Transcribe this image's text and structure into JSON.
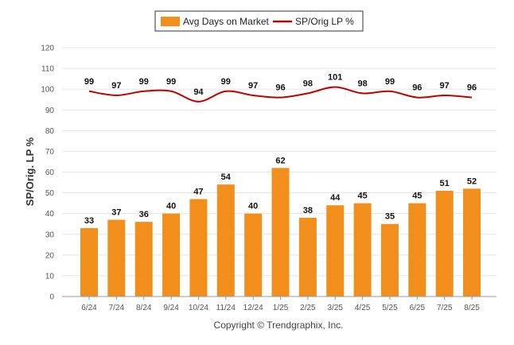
{
  "chart_data": {
    "type": "bar",
    "title": "",
    "ylabel": "SP/Orig. LP %",
    "xlabel": "",
    "ylim": [
      0,
      120
    ],
    "yticks": [
      0,
      10,
      20,
      30,
      40,
      50,
      60,
      70,
      80,
      90,
      100,
      110,
      120
    ],
    "grid": true,
    "legend_position": "top-center",
    "categories": [
      "6/24",
      "7/24",
      "8/24",
      "9/24",
      "10/24",
      "11/24",
      "12/24",
      "1/25",
      "2/25",
      "3/25",
      "4/25",
      "5/25",
      "6/25",
      "7/25",
      "8/25"
    ],
    "series": [
      {
        "name": "Avg Days on Market",
        "type": "bar",
        "color": "#f28e1c",
        "values": [
          33,
          37,
          36,
          40,
          47,
          54,
          40,
          62,
          38,
          44,
          45,
          35,
          45,
          51,
          52
        ]
      },
      {
        "name": "SP/Orig LP %",
        "type": "line",
        "color": "#c00000",
        "values": [
          99,
          97,
          99,
          99,
          94,
          99,
          97,
          96,
          98,
          101,
          98,
          99,
          96,
          97,
          96
        ]
      }
    ]
  },
  "footer": {
    "credit": "Copyright © Trendgraphix, Inc."
  }
}
